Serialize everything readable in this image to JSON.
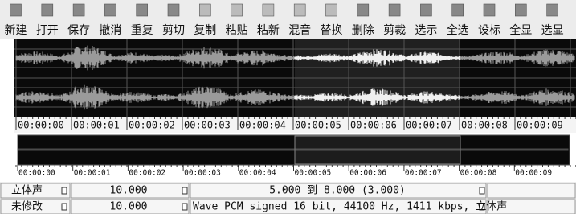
{
  "toolbar": {
    "buttons": [
      "新建",
      "打开",
      "保存",
      "撤消",
      "重复",
      "剪切",
      "复制",
      "粘贴",
      "粘新",
      "混音",
      "替换",
      "删除",
      "剪裁",
      "选示",
      "全选",
      "设标",
      "全显",
      "选显"
    ]
  },
  "timeline": {
    "labels": [
      "00:00:00",
      "00:00:01",
      "00:00:02",
      "00:00:03",
      "00:00:04",
      "00:00:05",
      "00:00:06",
      "00:00:07",
      "00:00:08",
      "00:00:09"
    ]
  },
  "overview": {
    "labels": [
      "00:00:00",
      "00:00:01",
      "00:00:02",
      "00:00:03",
      "00:00:04",
      "00:00:05",
      "00:00:06",
      "00:00:07",
      "00:00:08",
      "00:00:09"
    ]
  },
  "status": {
    "rows": [
      [
        "立体声",
        "10.000",
        "5.000 到 8.000 (3.000)"
      ],
      [
        "未修改",
        "10.000",
        "Wave PCM signed 16 bit, 44100 Hz, 1411 kbps, 立体声"
      ]
    ]
  }
}
